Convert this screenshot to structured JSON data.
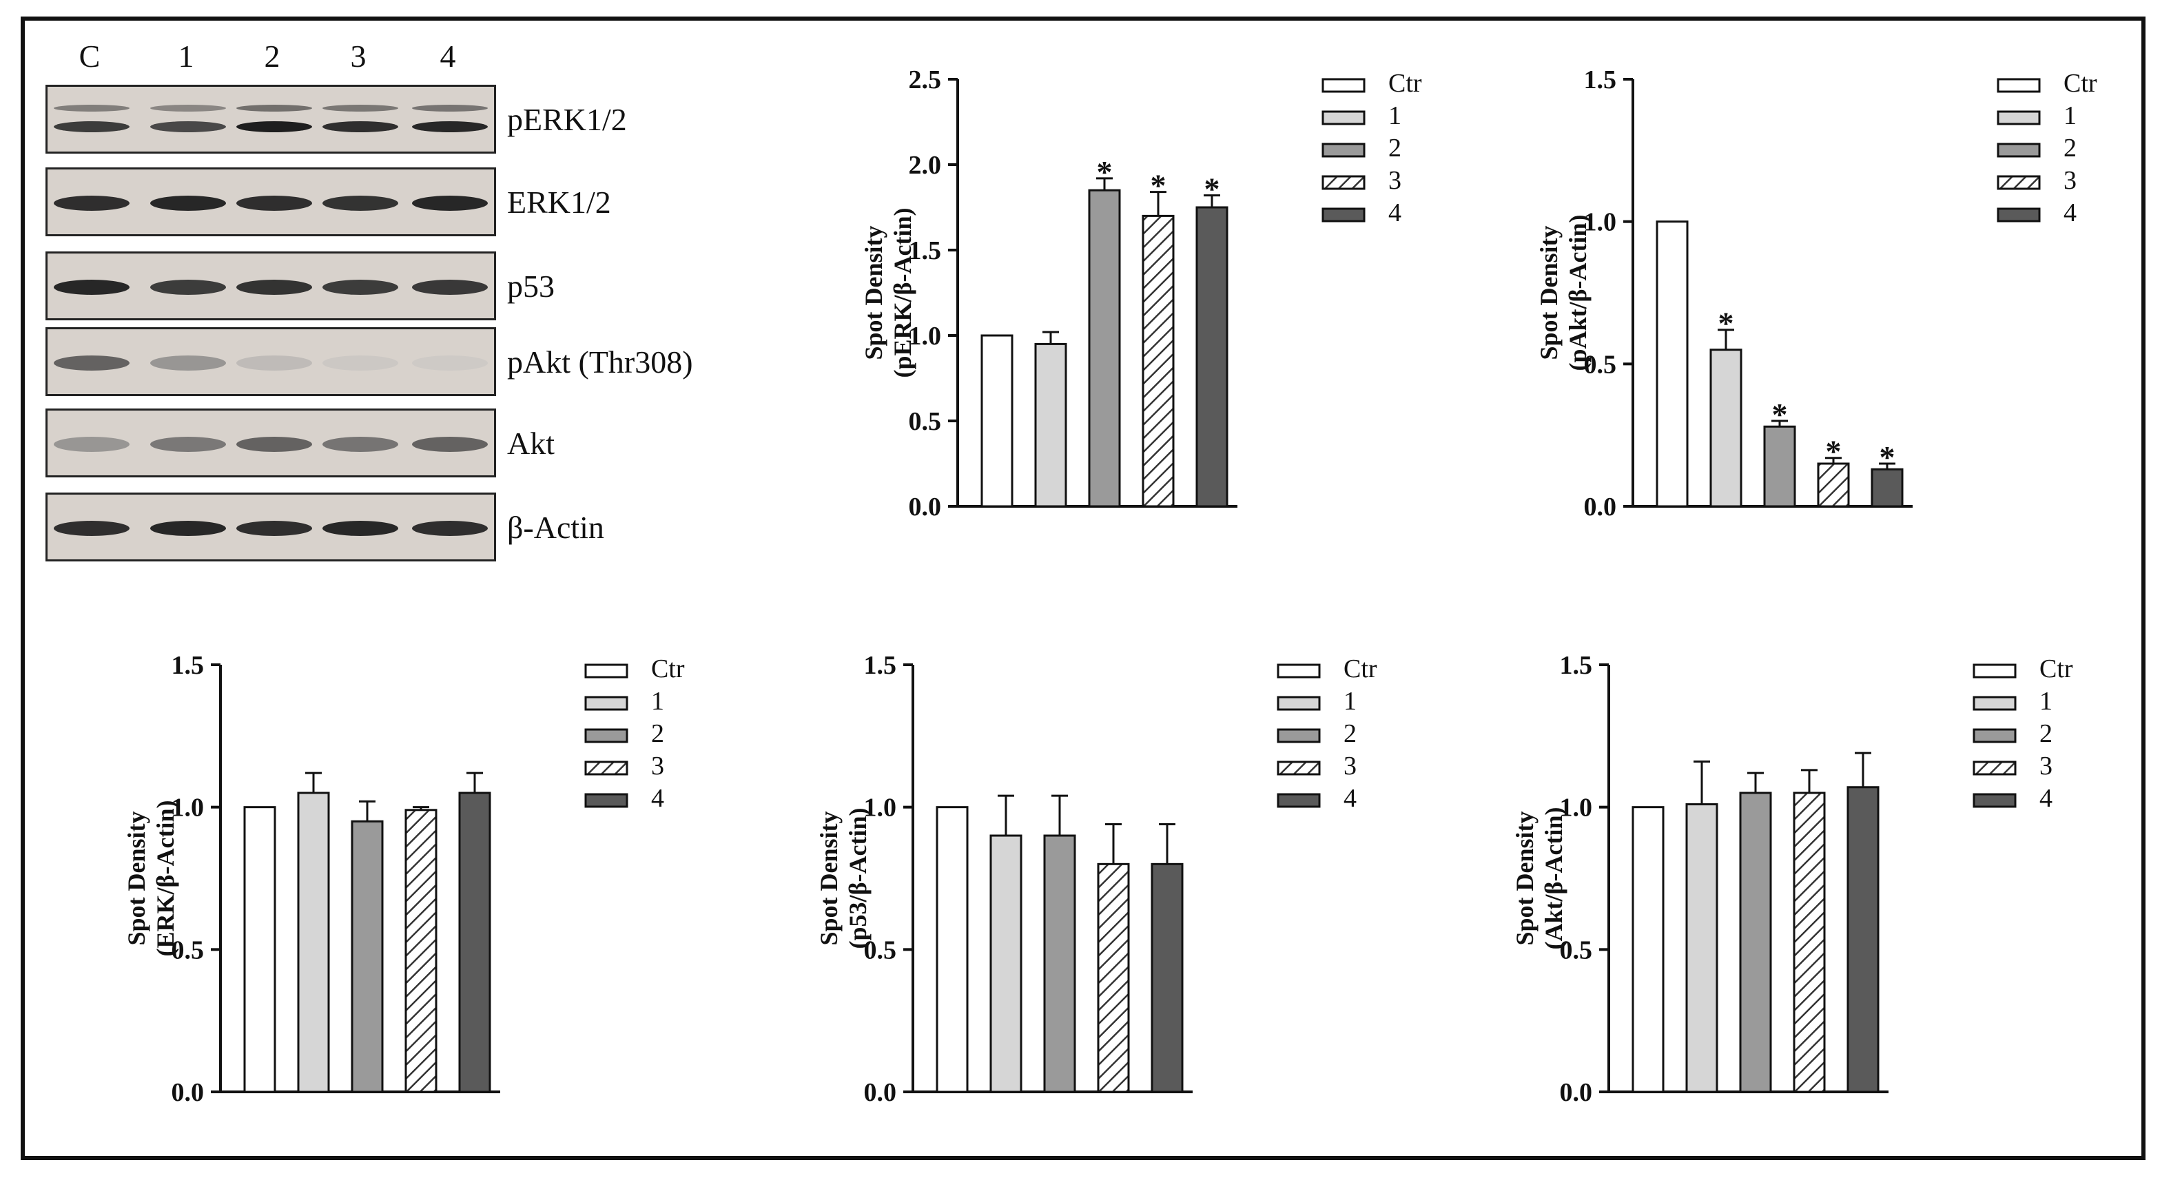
{
  "blot": {
    "lanes": [
      "C",
      "1",
      "2",
      "3",
      "4"
    ],
    "strips": [
      {
        "label": "pERK1/2",
        "intensity": [
          0.85,
          0.8,
          0.95,
          0.9,
          0.92
        ],
        "double": true
      },
      {
        "label": "ERK1/2",
        "intensity": [
          0.9,
          0.92,
          0.9,
          0.88,
          0.92
        ],
        "double": false
      },
      {
        "label": "p53",
        "intensity": [
          0.92,
          0.85,
          0.88,
          0.85,
          0.86
        ],
        "double": false
      },
      {
        "label": "pAkt (Thr308)",
        "intensity": [
          0.7,
          0.45,
          0.2,
          0.08,
          0.05
        ],
        "double": false
      },
      {
        "label": "Akt",
        "intensity": [
          0.45,
          0.6,
          0.7,
          0.62,
          0.7
        ],
        "double": false
      },
      {
        "label": "β-Actin",
        "intensity": [
          0.9,
          0.92,
          0.9,
          0.92,
          0.9
        ],
        "double": false
      }
    ]
  },
  "legend": [
    {
      "label": "Ctr",
      "fill": "#ffffff",
      "hatch": false
    },
    {
      "label": "1",
      "fill": "#d6d6d6",
      "hatch": false
    },
    {
      "label": "2",
      "fill": "#9a9a9a",
      "hatch": false
    },
    {
      "label": "3",
      "fill": "#ffffff",
      "hatch": true
    },
    {
      "label": "4",
      "fill": "#5a5a5a",
      "hatch": false
    }
  ],
  "chart_data": [
    {
      "id": "perk",
      "type": "bar",
      "ylabel": [
        "Spot Density",
        "(pERK/β-Actin)"
      ],
      "categories": [
        "Ctr",
        "1",
        "2",
        "3",
        "4"
      ],
      "values": [
        1.0,
        0.95,
        1.85,
        1.7,
        1.75
      ],
      "errors": [
        0,
        0.07,
        0.07,
        0.14,
        0.07
      ],
      "significant": [
        false,
        false,
        true,
        true,
        true
      ],
      "ylim": [
        0,
        2.5
      ],
      "yticks": [
        "0.0",
        "0.5",
        "1.0",
        "1.5",
        "2.0",
        "2.5"
      ]
    },
    {
      "id": "pakt",
      "type": "bar",
      "ylabel": [
        "Spot Density",
        "(pAkt/β-Actin)"
      ],
      "categories": [
        "Ctr",
        "1",
        "2",
        "3",
        "4"
      ],
      "values": [
        1.0,
        0.55,
        0.28,
        0.15,
        0.13
      ],
      "errors": [
        0,
        0.07,
        0.02,
        0.02,
        0.02
      ],
      "significant": [
        false,
        true,
        true,
        true,
        true
      ],
      "ylim": [
        0,
        1.5
      ],
      "yticks": [
        "0.0",
        "0.5",
        "1.0",
        "1.5"
      ]
    },
    {
      "id": "erk",
      "type": "bar",
      "ylabel": [
        "Spot Density",
        "(ERK/β-Actin)"
      ],
      "categories": [
        "Ctr",
        "1",
        "2",
        "3",
        "4"
      ],
      "values": [
        1.0,
        1.05,
        0.95,
        0.99,
        1.05
      ],
      "errors": [
        0,
        0.07,
        0.07,
        0.01,
        0.07
      ],
      "significant": [
        false,
        false,
        false,
        false,
        false
      ],
      "ylim": [
        0,
        1.5
      ],
      "yticks": [
        "0.0",
        "0.5",
        "1.0",
        "1.5"
      ]
    },
    {
      "id": "p53",
      "type": "bar",
      "ylabel": [
        "Spot Density",
        "(p53/β-Actin)"
      ],
      "categories": [
        "Ctr",
        "1",
        "2",
        "3",
        "4"
      ],
      "values": [
        1.0,
        0.9,
        0.9,
        0.8,
        0.8
      ],
      "errors": [
        0,
        0.14,
        0.14,
        0.14,
        0.14
      ],
      "significant": [
        false,
        false,
        false,
        false,
        false
      ],
      "ylim": [
        0,
        1.5
      ],
      "yticks": [
        "0.0",
        "0.5",
        "1.0",
        "1.5"
      ]
    },
    {
      "id": "akt",
      "type": "bar",
      "ylabel": [
        "Spot Density",
        "(Akt/β-Actin)"
      ],
      "categories": [
        "Ctr",
        "1",
        "2",
        "3",
        "4"
      ],
      "values": [
        1.0,
        1.01,
        1.05,
        1.05,
        1.07
      ],
      "errors": [
        0,
        0.15,
        0.07,
        0.08,
        0.12
      ],
      "significant": [
        false,
        false,
        false,
        false,
        false
      ],
      "ylim": [
        0,
        1.5
      ],
      "yticks": [
        "0.0",
        "0.5",
        "1.0",
        "1.5"
      ]
    }
  ],
  "significance_mark": "*"
}
